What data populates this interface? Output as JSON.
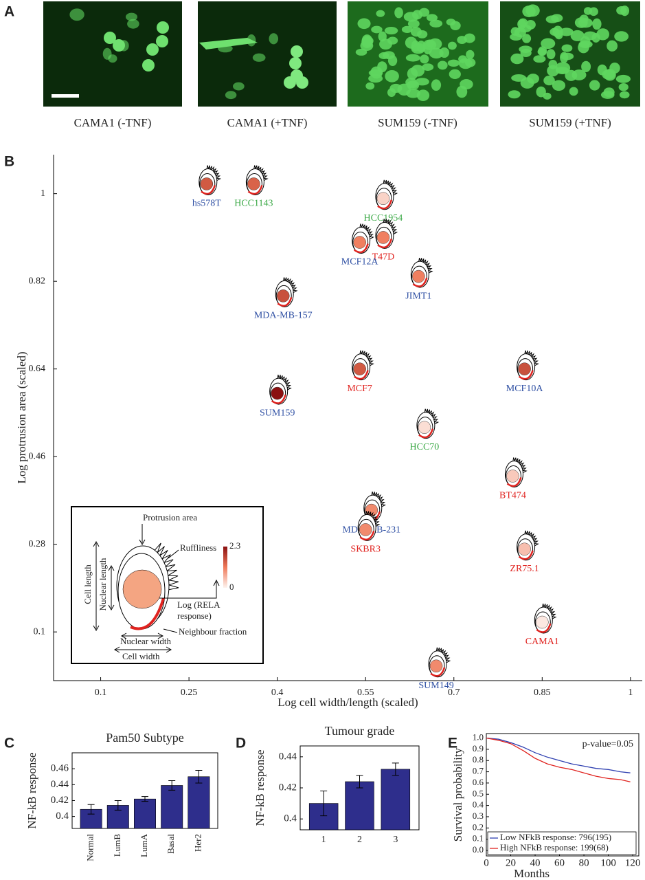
{
  "panels": [
    "A",
    "B",
    "C",
    "D",
    "E"
  ],
  "images": {
    "captions": [
      "CAMA1 (-TNF)",
      "CAMA1 (+TNF)",
      "SUM159 (-TNF)",
      "SUM159 (+TNF)"
    ]
  },
  "chart_data": [
    {
      "type": "scatter",
      "xlabel": "Log cell width/length (scaled)",
      "ylabel": "Log protrusion area (scaled)",
      "xlim": [
        0.02,
        1.02
      ],
      "ylim": [
        0,
        1.08
      ],
      "xticks": [
        0.1,
        0.25,
        0.4,
        0.55,
        0.7,
        0.85,
        1
      ],
      "yticks": [
        0.1,
        0.28,
        0.46,
        0.64,
        0.82,
        1
      ],
      "labels": [
        "hs578T",
        "HCC1143",
        "HCC1954",
        "T47D",
        "MCF12A",
        "JIMT1",
        "MDA-MB-157",
        "MCF7",
        "MCF10A",
        "SUM159",
        "HCC70",
        "BT474",
        "MDA-MB-231",
        "SKBR3",
        "ZR75.1",
        "CAMA1",
        "SUM149"
      ],
      "x": [
        0.28,
        0.36,
        0.58,
        0.58,
        0.54,
        0.64,
        0.41,
        0.54,
        0.82,
        0.4,
        0.65,
        0.8,
        0.56,
        0.55,
        0.82,
        0.85,
        0.67
      ],
      "y": [
        1.02,
        1.02,
        0.99,
        0.91,
        0.9,
        0.83,
        0.79,
        0.64,
        0.64,
        0.59,
        0.52,
        0.42,
        0.35,
        0.31,
        0.27,
        0.12,
        0.03
      ],
      "rela": [
        1.5,
        1.4,
        0.3,
        1.1,
        1.1,
        1.1,
        1.6,
        1.5,
        1.6,
        2.3,
        0.2,
        0.4,
        1.0,
        1.0,
        0.5,
        0.1,
        1.0
      ],
      "label_colors": [
        "#2e4fa3",
        "#3aa845",
        "#3aa845",
        "#e0231f",
        "#2e4fa3",
        "#2e4fa3",
        "#2e4fa3",
        "#e0231f",
        "#2e4fa3",
        "#2e4fa3",
        "#3aa845",
        "#e0231f",
        "#2e4fa3",
        "#e0231f",
        "#e0231f",
        "#e0231f",
        "#2e4fa3"
      ],
      "colorbar_ticks": [
        0,
        2.3
      ],
      "inset": {
        "protrusion": "Protrusion area",
        "ruffliness": "Ruffliness",
        "cell_length": "Cell length",
        "nuclear_length": "Nuclear length",
        "rela": [
          "Log (RELA",
          "response)"
        ],
        "neighbour": "Neighbour fraction",
        "nuclear_width": "Nuclear width",
        "cell_width": "Cell width"
      }
    },
    {
      "type": "bar",
      "title": "Pam50 Subtype",
      "ylabel": "NF-kB response",
      "categories": [
        "Normal",
        "LumB",
        "LumA",
        "Basal",
        "Her2"
      ],
      "values": [
        0.409,
        0.414,
        0.422,
        0.439,
        0.45
      ],
      "errors": [
        0.006,
        0.006,
        0.003,
        0.006,
        0.008
      ],
      "color": "#2e2e8c",
      "ylim": [
        0.385,
        0.48
      ],
      "yticks": [
        0.4,
        0.42,
        0.44,
        0.46
      ]
    },
    {
      "type": "bar",
      "title": "Tumour grade",
      "ylabel": "NF-kB response",
      "categories": [
        "1",
        "2",
        "3"
      ],
      "values": [
        0.41,
        0.424,
        0.432
      ],
      "errors": [
        0.008,
        0.004,
        0.004
      ],
      "color": "#2e2e8c",
      "ylim": [
        0.393,
        0.447
      ],
      "yticks": [
        0.4,
        0.42,
        0.44
      ]
    },
    {
      "type": "line",
      "xlabel": "Months",
      "ylabel": "Survival probability",
      "annotation": "p-value=0.05",
      "x": [
        0,
        10,
        20,
        30,
        40,
        50,
        60,
        70,
        80,
        90,
        100,
        110,
        118
      ],
      "series": [
        {
          "name": "Low NFkB response: 796(195)",
          "color": "#2e3fb0",
          "values": [
            1.0,
            0.99,
            0.96,
            0.92,
            0.87,
            0.83,
            0.8,
            0.77,
            0.75,
            0.73,
            0.72,
            0.7,
            0.69
          ]
        },
        {
          "name": "High NFkB response: 199(68)",
          "color": "#e0231f",
          "values": [
            1.0,
            0.98,
            0.95,
            0.89,
            0.82,
            0.77,
            0.74,
            0.72,
            0.69,
            0.66,
            0.64,
            0.63,
            0.61
          ]
        }
      ],
      "xlim": [
        0,
        125
      ],
      "ylim": [
        0,
        1.04
      ],
      "xticks": [
        0,
        20,
        40,
        60,
        80,
        100,
        120
      ],
      "yticks": [
        {
          "value": 0,
          "label": "0.0"
        },
        0.1,
        0.2,
        0.3,
        0.4,
        0.5,
        0.6,
        0.7,
        0.8,
        0.9,
        {
          "value": 1,
          "label": "1.0"
        }
      ],
      "legend": "lower left"
    }
  ]
}
